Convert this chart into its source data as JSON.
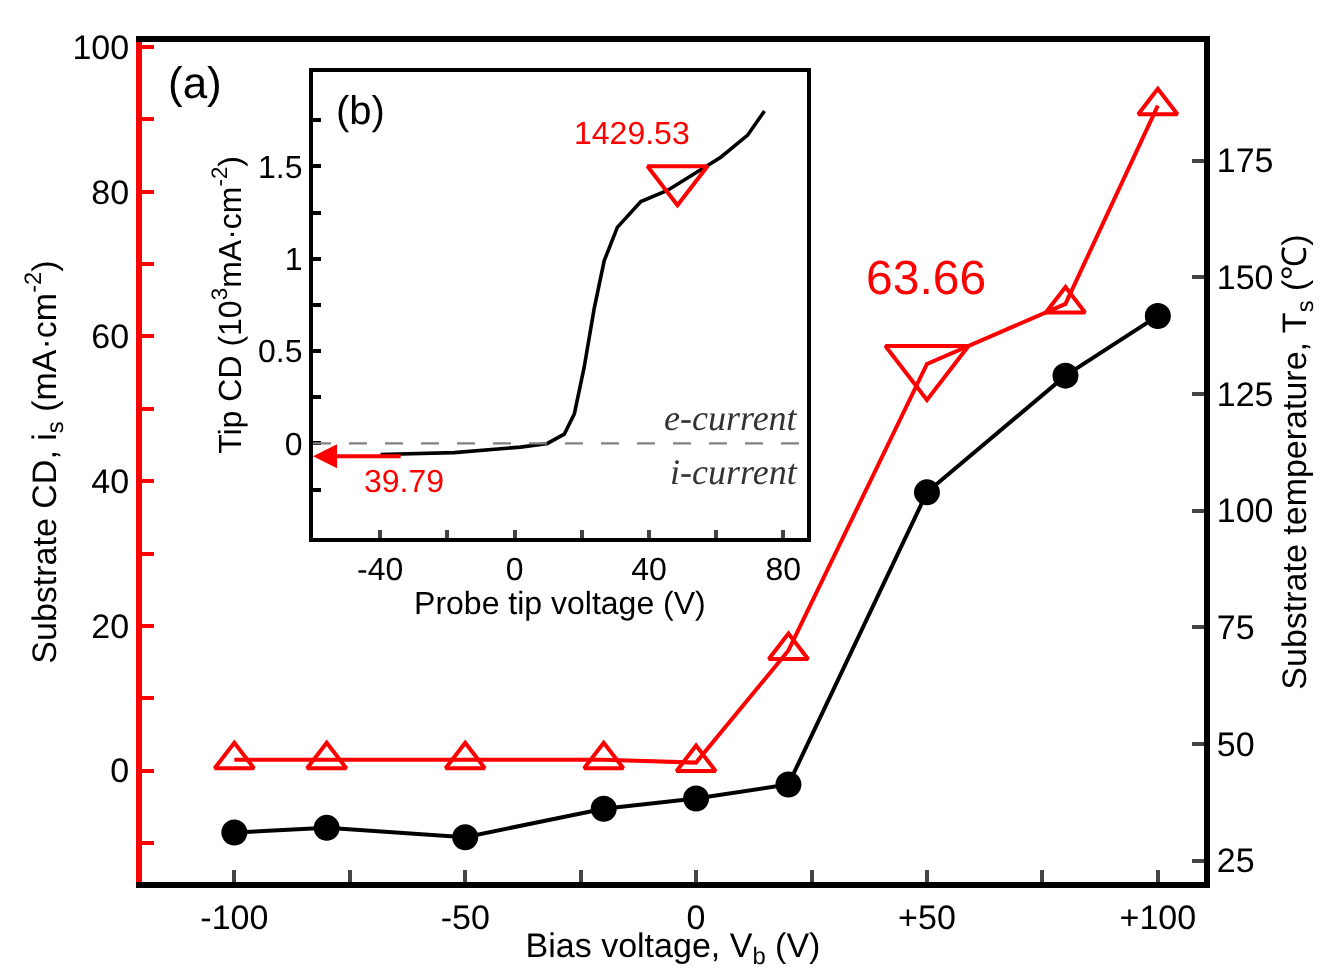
{
  "chart_data": [
    {
      "type": "line",
      "xlabel": "Bias voltage, V$_{b}$ (V)",
      "ylabel": "Substrate CD, i$_{s}$ (mA·cm$^{-2}$)",
      "y2label": "Substrate temperature, T$_{s}$ (℃)",
      "x": [
        -100,
        -80,
        -50,
        -20,
        0,
        20,
        50,
        80,
        100
      ],
      "series": [
        {
          "color": "#ff0000",
          "marker": "none",
          "values": [
            1.5,
            1.5,
            1.5,
            1.5,
            1.1,
            16.6,
            56.2,
            64.5,
            91.9
          ]
        },
        {
          "type": "scatter",
          "color": "#ff0000",
          "marker": "triangle",
          "x": [
            -100,
            -80,
            -50,
            -20,
            0,
            20,
            80,
            100
          ],
          "values": [
            1.5,
            1.5,
            1.5,
            1.5,
            1.1,
            16.6,
            64.5,
            91.9
          ]
        },
        {
          "color": "#000000",
          "marker": "circle",
          "axis": "y2",
          "values": [
            31.0,
            32.0,
            30.0,
            36.1,
            38.3,
            41.3,
            103.9,
            128.9,
            141.7
          ]
        },
        {
          "type": "scatter",
          "color": "#ff0000",
          "marker": "triangle-down",
          "x": [
            50
          ],
          "values": [
            56.2
          ]
        }
      ],
      "xlim": [
        -120,
        110
      ],
      "xticks": [
        -100,
        {
          "value": -75,
          "label": null
        },
        -50,
        {
          "value": -25,
          "label": null
        },
        0,
        {
          "value": 25,
          "label": null
        },
        {
          "value": 50,
          "label": "+50"
        },
        {
          "value": 75,
          "label": null
        },
        {
          "value": 100,
          "label": "+100"
        }
      ],
      "ylim": [
        -15.4,
        100.7
      ],
      "yticks": [
        {
          "value": -10,
          "label": null
        },
        0,
        {
          "value": 10,
          "label": null
        },
        20,
        {
          "value": 30,
          "label": null
        },
        40,
        {
          "value": 50,
          "label": null
        },
        60,
        {
          "value": 70,
          "label": null
        },
        80,
        {
          "value": 90,
          "label": null
        },
        100
      ],
      "y2lim": [
        20.4,
        200.4
      ],
      "y2ticks": [
        25,
        50,
        75,
        100,
        125,
        150,
        175
      ],
      "annotations": [
        "(a)",
        {
          "text": "63.66",
          "x": 50,
          "y": 56.2
        }
      ]
    },
    {
      "type": "line",
      "xlabel": "Probe tip voltage (V)",
      "ylabel": "Tip CD (10$^{3}$mA·cm$^{-2}$)",
      "series": [
        {
          "color": "#000000",
          "marker": "none",
          "x": [
            -39.9,
            -18.0,
            1.8,
            9.8,
            14.8,
            17.8,
            20.7,
            23.7,
            26.7,
            30.6,
            37.6,
            45.5,
            53.5,
            61.4,
            69.4,
            74.4
          ],
          "values": [
            -0.06,
            -0.05,
            -0.02,
            0.0,
            0.05,
            0.16,
            0.41,
            0.73,
            0.99,
            1.17,
            1.31,
            1.37,
            1.46,
            1.55,
            1.67,
            1.8
          ]
        },
        {
          "type": "scatter",
          "color": "#ff0000",
          "marker": "triangle-down",
          "x": [
            48.5
          ],
          "values": [
            1.43
          ]
        }
      ],
      "xlim": [
        -60,
        87
      ],
      "xticks": [
        -40,
        {
          "value": -20,
          "label": null
        },
        0,
        {
          "value": 20,
          "label": null
        },
        40,
        {
          "value": 60,
          "label": null
        },
        80
      ],
      "ylim": [
        -0.51,
        2.01
      ],
      "yticks": [
        {
          "value": -0.25,
          "label": null
        },
        0,
        {
          "value": 0.25,
          "label": null
        },
        0.5,
        {
          "value": 0.75,
          "label": null
        },
        1,
        {
          "value": 1.25,
          "label": null
        },
        1.5,
        {
          "value": 1.75,
          "label": null
        }
      ],
      "ref_lines": [
        {
          "axis": "y",
          "value": 0,
          "color": "#808080",
          "line_style": "dashed"
        }
      ],
      "annotations": [
        "(b)",
        {
          "text": "1429.53",
          "x": 48.5,
          "y": 1.43
        },
        {
          "text": "39.79",
          "x": -33,
          "y": -0.07
        },
        "e-current",
        "i-current"
      ]
    }
  ]
}
